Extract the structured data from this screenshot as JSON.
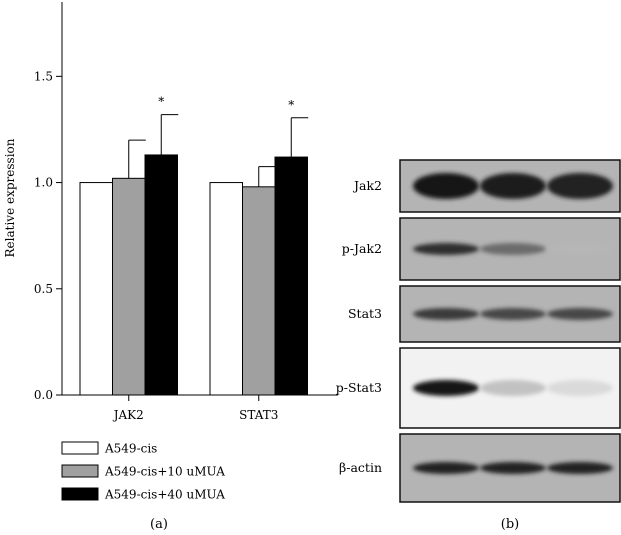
{
  "chart_data": [
    {
      "type": "bar",
      "panel": "(a)",
      "ylabel": "Relative expression",
      "ylim": [
        0,
        1.85
      ],
      "yticks": [
        "0.0",
        "0.5",
        "1.0",
        "1.5"
      ],
      "categories": [
        "JAK2",
        "STAT3"
      ],
      "series": [
        {
          "name": "A549-cis",
          "color": "#ffffff",
          "values": [
            1.0,
            1.0
          ],
          "errors": [
            0,
            0
          ],
          "marks": [
            "",
            ""
          ]
        },
        {
          "name": "A549-cis+10 uMUA",
          "color": "#a0a0a0",
          "values": [
            1.02,
            0.98
          ],
          "errors": [
            0.18,
            0.095
          ],
          "marks": [
            "",
            ""
          ]
        },
        {
          "name": "A549-cis+40 uMUA",
          "color": "#000000",
          "values": [
            1.13,
            1.12
          ],
          "errors": [
            0.19,
            0.185
          ],
          "marks": [
            "*",
            "*"
          ]
        }
      ]
    }
  ],
  "blot": {
    "panel": "(b)",
    "rows": [
      {
        "label": "Jak2",
        "intensities": [
          0.95,
          0.92,
          0.9
        ]
      },
      {
        "label": "p-Jak2",
        "intensities": [
          0.85,
          0.6,
          0.3
        ]
      },
      {
        "label": "Stat3",
        "intensities": [
          0.8,
          0.75,
          0.75
        ]
      },
      {
        "label": "p-Stat3",
        "intensities": [
          0.95,
          0.25,
          0.15
        ]
      },
      {
        "label": "β-actin",
        "intensities": [
          0.9,
          0.9,
          0.9
        ]
      }
    ]
  }
}
